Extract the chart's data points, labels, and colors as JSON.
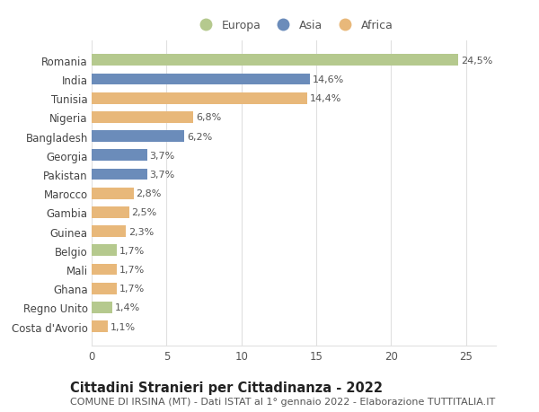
{
  "categories": [
    "Costa d'Avorio",
    "Regno Unito",
    "Ghana",
    "Mali",
    "Belgio",
    "Guinea",
    "Gambia",
    "Marocco",
    "Pakistan",
    "Georgia",
    "Bangladesh",
    "Nigeria",
    "Tunisia",
    "India",
    "Romania"
  ],
  "values": [
    1.1,
    1.4,
    1.7,
    1.7,
    1.7,
    2.3,
    2.5,
    2.8,
    3.7,
    3.7,
    6.2,
    6.8,
    14.4,
    14.6,
    24.5
  ],
  "continents": [
    "Africa",
    "Europa",
    "Africa",
    "Africa",
    "Europa",
    "Africa",
    "Africa",
    "Africa",
    "Asia",
    "Asia",
    "Asia",
    "Africa",
    "Africa",
    "Asia",
    "Europa"
  ],
  "labels": [
    "1,1%",
    "1,4%",
    "1,7%",
    "1,7%",
    "1,7%",
    "2,3%",
    "2,5%",
    "2,8%",
    "3,7%",
    "3,7%",
    "6,2%",
    "6,8%",
    "14,4%",
    "14,6%",
    "24,5%"
  ],
  "colors": {
    "Europa": "#b5c98e",
    "Asia": "#6b8cba",
    "Africa": "#e8b87a"
  },
  "legend_labels": [
    "Europa",
    "Asia",
    "Africa"
  ],
  "legend_colors": [
    "#b5c98e",
    "#6b8cba",
    "#e8b87a"
  ],
  "title": "Cittadini Stranieri per Cittadinanza - 2022",
  "subtitle": "COMUNE DI IRSINA (MT) - Dati ISTAT al 1° gennaio 2022 - Elaborazione TUTTITALIA.IT",
  "xlim": [
    0,
    27
  ],
  "xticks": [
    0,
    5,
    10,
    15,
    20,
    25
  ],
  "background_color": "#ffffff",
  "grid_color": "#e0e0e0",
  "bar_label_fontsize": 8,
  "axis_label_fontsize": 8.5,
  "title_fontsize": 10.5,
  "subtitle_fontsize": 8
}
